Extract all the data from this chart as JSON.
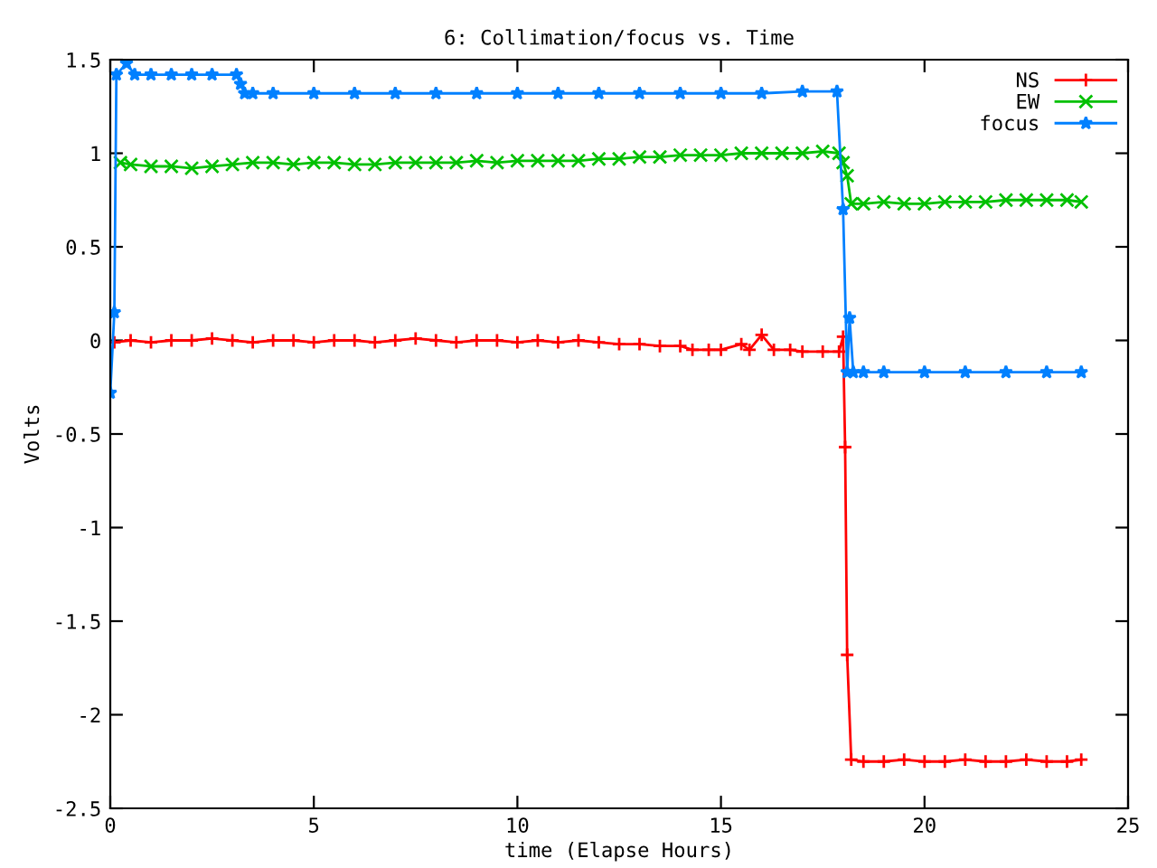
{
  "chart_data": {
    "type": "line",
    "title": "6: Collimation/focus vs. Time",
    "xlabel": "time (Elapse Hours)",
    "ylabel": "Volts",
    "xlim": [
      0,
      25
    ],
    "xticks": [
      0,
      5,
      10,
      15,
      20,
      25
    ],
    "ylim": [
      -2.5,
      1.5
    ],
    "yticks": [
      -2.5,
      -2,
      -1.5,
      -1,
      -0.5,
      0,
      0.5,
      1,
      1.5
    ],
    "grid": false,
    "legend": "top right",
    "line_style": "solid",
    "series": [
      {
        "name": "NS",
        "color": "#ff0000",
        "marker": "plus",
        "x": [
          0.1,
          0.5,
          1,
          1.5,
          2,
          2.5,
          3,
          3.5,
          4,
          4.5,
          5,
          5.5,
          6,
          6.5,
          7,
          7.5,
          8,
          8.5,
          9,
          9.5,
          10,
          10.5,
          11,
          11.5,
          12,
          12.5,
          13,
          13.5,
          14,
          14.3,
          14.7,
          15,
          15.5,
          15.7,
          16,
          16.3,
          16.7,
          17,
          17.5,
          17.9,
          18.0,
          18.05,
          18.1,
          18.2,
          18.5,
          19,
          19.5,
          20,
          20.5,
          21,
          21.5,
          22,
          22.5,
          23,
          23.5,
          23.85
        ],
        "values": [
          -0.01,
          0.0,
          -0.01,
          0.0,
          0.0,
          0.01,
          0.0,
          -0.01,
          0.0,
          0.0,
          -0.01,
          0.0,
          0.0,
          -0.01,
          0.0,
          0.01,
          0.0,
          -0.01,
          0.0,
          0.0,
          -0.01,
          0.0,
          -0.01,
          0.0,
          -0.01,
          -0.02,
          -0.02,
          -0.03,
          -0.03,
          -0.05,
          -0.05,
          -0.05,
          -0.02,
          -0.05,
          0.03,
          -0.05,
          -0.05,
          -0.06,
          -0.06,
          -0.06,
          0.02,
          -0.57,
          -1.68,
          -2.24,
          -2.25,
          -2.25,
          -2.24,
          -2.25,
          -2.25,
          -2.24,
          -2.25,
          -2.25,
          -2.24,
          -2.25,
          -2.25,
          -2.24
        ]
      },
      {
        "name": "EW",
        "color": "#00c000",
        "marker": "cross",
        "x": [
          0.25,
          0.5,
          1,
          1.5,
          2,
          2.5,
          3,
          3.5,
          4,
          4.5,
          5,
          5.5,
          6,
          6.5,
          7,
          7.5,
          8,
          8.5,
          9,
          9.5,
          10,
          10.5,
          11,
          11.5,
          12,
          12.5,
          13,
          13.5,
          14,
          14.5,
          15,
          15.5,
          16,
          16.5,
          17,
          17.5,
          17.9,
          18.0,
          18.1,
          18.2,
          18.5,
          19,
          19.5,
          20,
          20.5,
          21,
          21.5,
          22,
          22.5,
          23,
          23.5,
          23.85
        ],
        "values": [
          0.95,
          0.94,
          0.93,
          0.93,
          0.92,
          0.93,
          0.94,
          0.95,
          0.95,
          0.94,
          0.95,
          0.95,
          0.94,
          0.94,
          0.95,
          0.95,
          0.95,
          0.95,
          0.96,
          0.95,
          0.96,
          0.96,
          0.96,
          0.96,
          0.97,
          0.97,
          0.98,
          0.98,
          0.99,
          0.99,
          0.99,
          1.0,
          1.0,
          1.0,
          1.0,
          1.01,
          1.0,
          0.95,
          0.88,
          0.73,
          0.73,
          0.74,
          0.73,
          0.73,
          0.74,
          0.74,
          0.74,
          0.75,
          0.75,
          0.75,
          0.75,
          0.74
        ]
      },
      {
        "name": "focus",
        "color": "#0080ff",
        "marker": "star",
        "x": [
          0,
          0.1,
          0.15,
          0.4,
          0.6,
          1,
          1.5,
          2,
          2.5,
          3.1,
          3.2,
          3.3,
          3.5,
          4,
          5,
          6,
          7,
          8,
          9,
          10,
          11,
          12,
          13,
          14,
          15,
          16,
          17,
          17.85,
          18.0,
          18.1,
          18.16,
          18.25,
          18.5,
          19,
          20,
          21,
          22,
          23,
          23.85
        ],
        "values": [
          -0.28,
          0.15,
          1.42,
          1.48,
          1.42,
          1.42,
          1.42,
          1.42,
          1.42,
          1.42,
          1.37,
          1.32,
          1.32,
          1.32,
          1.32,
          1.32,
          1.32,
          1.32,
          1.32,
          1.32,
          1.32,
          1.32,
          1.32,
          1.32,
          1.32,
          1.32,
          1.33,
          1.33,
          0.7,
          -0.17,
          0.12,
          -0.17,
          -0.17,
          -0.17,
          -0.17,
          -0.17,
          -0.17,
          -0.17,
          -0.17
        ]
      }
    ]
  }
}
